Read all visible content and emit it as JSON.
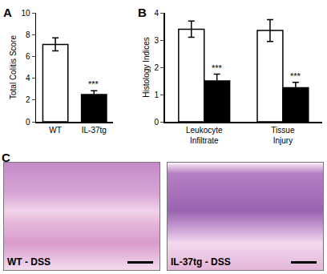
{
  "chart_data": [
    {
      "type": "bar",
      "title": "A",
      "categories": [
        "WT",
        "IL-37tg"
      ],
      "values": [
        7.1,
        2.5
      ],
      "errors": [
        0.6,
        0.35
      ],
      "colors": [
        "#ffffff",
        "#000000"
      ],
      "y_label": "Total Colitis Score",
      "ylim": [
        0,
        10
      ],
      "yticks": [
        0,
        2,
        4,
        6,
        8,
        10
      ],
      "grid": false,
      "annotations": [
        {
          "category": "IL-37tg",
          "text": "***"
        }
      ]
    },
    {
      "type": "bar",
      "title": "B",
      "categories": [
        "Leukocyte\nInfiltrate",
        "Tissue\nInjury"
      ],
      "series": [
        {
          "color": "#ffffff",
          "values": [
            3.4,
            3.35
          ],
          "errors": [
            0.3,
            0.4
          ]
        },
        {
          "color": "#000000",
          "values": [
            1.5,
            1.25
          ],
          "errors": [
            0.25,
            0.2
          ]
        }
      ],
      "y_label": "Histology Indices",
      "ylim": [
        0,
        4
      ],
      "yticks": [
        0,
        1,
        2,
        3,
        4
      ],
      "grid": false,
      "annotations": [
        {
          "category": "Leukocyte\nInfiltrate",
          "series": 1,
          "text": "***"
        },
        {
          "category": "Tissue\nInjury",
          "series": 1,
          "text": "***"
        }
      ]
    }
  ],
  "figure": {
    "title": "C",
    "panels": [
      {
        "label": "WT - DSS"
      },
      {
        "label": "IL-37tg - DSS"
      }
    ]
  }
}
